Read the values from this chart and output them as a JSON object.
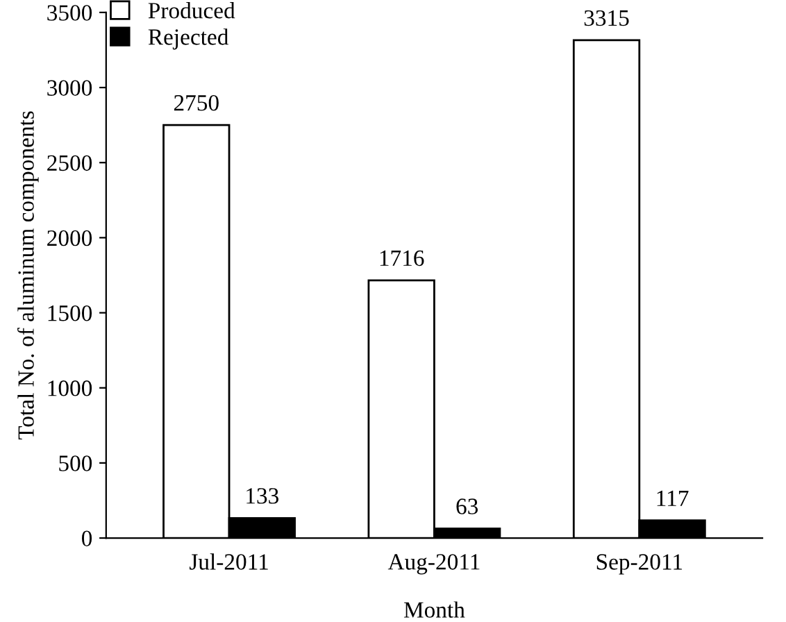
{
  "chart_data": {
    "type": "bar",
    "xlabel": "Month",
    "ylabel": "Total No. of aluminum components",
    "categories": [
      "Jul-2011",
      "Aug-2011",
      "Sep-2011"
    ],
    "series": [
      {
        "name": "Produced",
        "color": "#ffffff",
        "values": [
          2750,
          1716,
          3315
        ]
      },
      {
        "name": "Rejected",
        "color": "#000000",
        "values": [
          133,
          63,
          117
        ]
      }
    ],
    "ylim": [
      0,
      3500
    ],
    "yticks": [
      0,
      500,
      1000,
      1500,
      2000,
      2500,
      3000,
      3500
    ],
    "data_labels": true,
    "legend": "top left",
    "grid": false
  }
}
